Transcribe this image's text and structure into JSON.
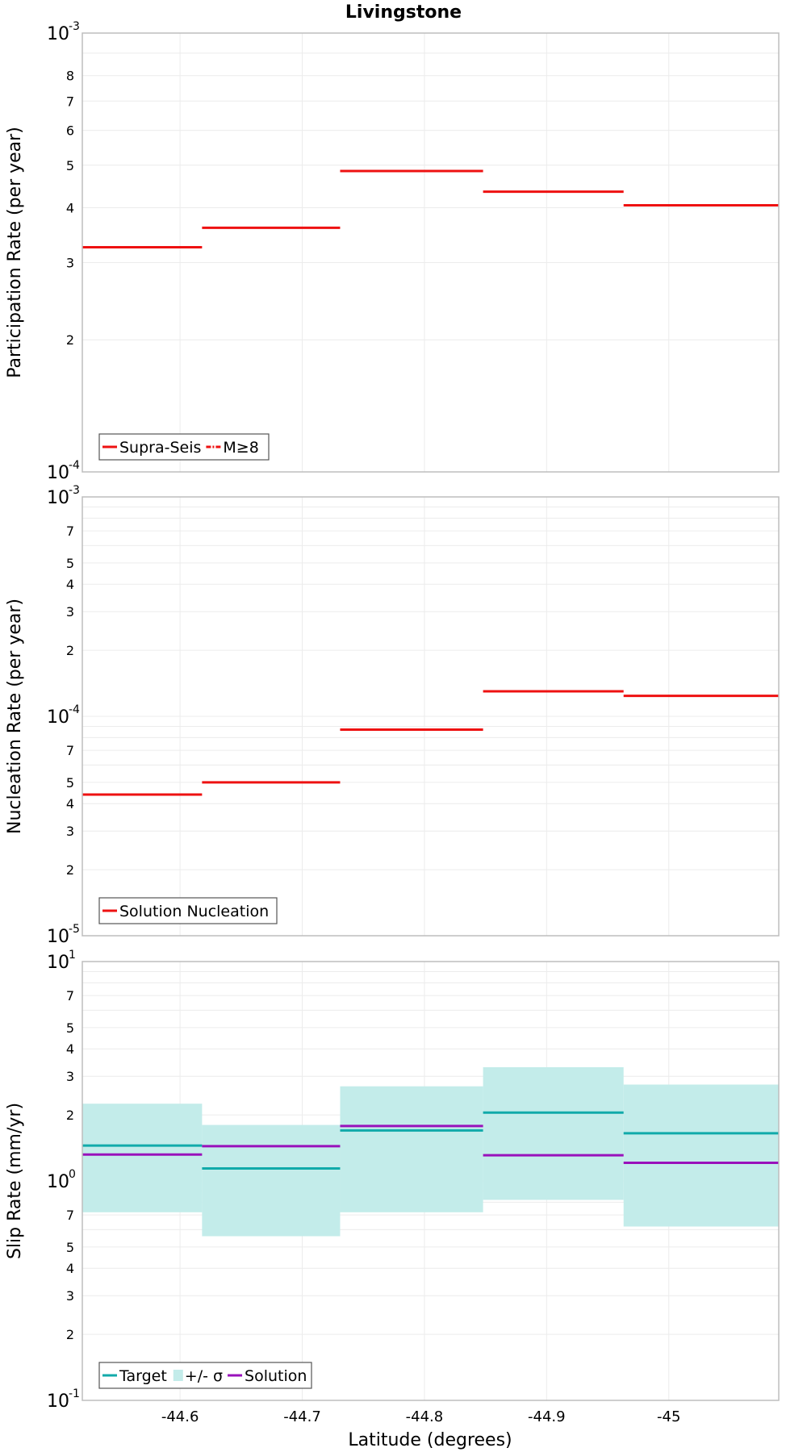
{
  "figure": {
    "title": "Livingstone",
    "xlabel": "Latitude (degrees)",
    "x_ticks": [
      -44.6,
      -44.7,
      -44.8,
      -44.9,
      -45
    ],
    "x_tick_labels": [
      "-44.6",
      "-44.7",
      "-44.8",
      "-44.9",
      "-45"
    ],
    "x_range": [
      -44.52,
      -45.09
    ],
    "x_reversed": true,
    "grid": true
  },
  "chart_data": [
    {
      "type": "line",
      "step": true,
      "ylabel": "Participation Rate (per year)",
      "yscale": "log",
      "ylim": [
        0.0001,
        0.001
      ],
      "major_tick_labels": [
        {
          "base": "10",
          "exp": "-4"
        },
        {
          "base": "10",
          "exp": "-3"
        }
      ],
      "minor_tick_labels": [
        "2",
        "3",
        "4",
        "5",
        "6",
        "7",
        "8"
      ],
      "minor_tick_values": [
        0.0002,
        0.0003,
        0.0004,
        0.0005,
        0.0006,
        0.0007,
        0.0008
      ],
      "bin_edges": [
        -44.52,
        -44.618,
        -44.731,
        -44.848,
        -44.963,
        -45.09
      ],
      "series": [
        {
          "name": "Supra-Seis",
          "color": "#ee1111",
          "style": "solid",
          "values": [
            0.000325,
            0.00036,
            0.000485,
            0.000435,
            0.000405
          ]
        },
        {
          "name": "M≥8",
          "color": "#ee1111",
          "style": "dashdot",
          "values": []
        }
      ],
      "legend": {
        "placement": "bottom-left"
      }
    },
    {
      "type": "line",
      "step": true,
      "ylabel": "Nucleation Rate (per year)",
      "yscale": "log",
      "ylim": [
        1e-05,
        0.001
      ],
      "major_tick_labels": [
        {
          "base": "10",
          "exp": "-5"
        },
        {
          "base": "10",
          "exp": "-4"
        },
        {
          "base": "10",
          "exp": "-3"
        }
      ],
      "minor_tick_labels": [
        "2",
        "3",
        "4",
        "5",
        "7",
        "2",
        "3",
        "4",
        "5",
        "7"
      ],
      "minor_tick_values": [
        2e-05,
        3e-05,
        4e-05,
        5e-05,
        7e-05,
        0.0002,
        0.0003,
        0.0004,
        0.0005,
        0.0007
      ],
      "bin_edges": [
        -44.52,
        -44.618,
        -44.731,
        -44.848,
        -44.963,
        -45.09
      ],
      "series": [
        {
          "name": "Solution Nucleation",
          "color": "#ee1111",
          "style": "solid",
          "values": [
            4.4e-05,
            5e-05,
            8.7e-05,
            0.00013,
            0.000124
          ]
        }
      ],
      "legend": {
        "placement": "bottom-left"
      }
    },
    {
      "type": "line",
      "step": true,
      "ylabel": "Slip Rate (mm/yr)",
      "yscale": "log",
      "ylim": [
        0.1,
        10
      ],
      "major_tick_labels": [
        {
          "base": "10",
          "exp": "-1"
        },
        {
          "base": "10",
          "exp": "0"
        },
        {
          "base": "10",
          "exp": "1"
        }
      ],
      "minor_tick_labels": [
        "2",
        "3",
        "4",
        "5",
        "7",
        "2",
        "3",
        "4",
        "5",
        "7"
      ],
      "minor_tick_values": [
        0.2,
        0.3,
        0.4,
        0.5,
        0.7,
        2,
        3,
        4,
        5,
        7
      ],
      "bin_edges": [
        -44.52,
        -44.618,
        -44.731,
        -44.848,
        -44.963,
        -45.09
      ],
      "series": [
        {
          "name": "Target",
          "color": "#11aaaa",
          "style": "solid",
          "values": [
            1.45,
            1.14,
            1.7,
            2.05,
            1.65
          ]
        },
        {
          "name": "+/- σ",
          "color": "#c3ecea",
          "style": "band",
          "lower": [
            0.72,
            0.56,
            0.72,
            0.82,
            0.62
          ],
          "upper": [
            2.25,
            1.8,
            2.7,
            3.3,
            2.75
          ]
        },
        {
          "name": "Solution",
          "color": "#9911bb",
          "style": "solid",
          "values": [
            1.32,
            1.44,
            1.78,
            1.31,
            1.21
          ]
        }
      ],
      "legend": {
        "placement": "bottom-left"
      }
    }
  ]
}
